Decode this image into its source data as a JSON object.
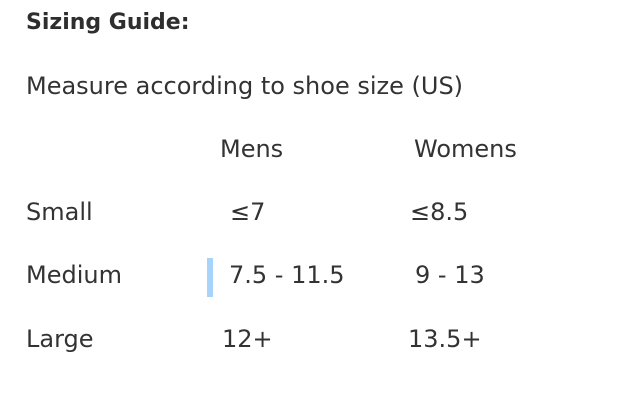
{
  "title": "Sizing Guide:",
  "subtitle": "Measure according to shoe size (US)",
  "table": {
    "headers": [
      "Mens",
      "Womens"
    ],
    "rows": [
      {
        "label": "Small",
        "mens": "≤7",
        "womens": "≤8.5"
      },
      {
        "label": "Medium",
        "mens": "7.5 - 11.5",
        "womens": "9 - 13"
      },
      {
        "label": "Large",
        "mens": "12+",
        "womens": "13.5+"
      }
    ]
  },
  "colors": {
    "text": "#333333",
    "cursor": "#a8d4fb"
  }
}
